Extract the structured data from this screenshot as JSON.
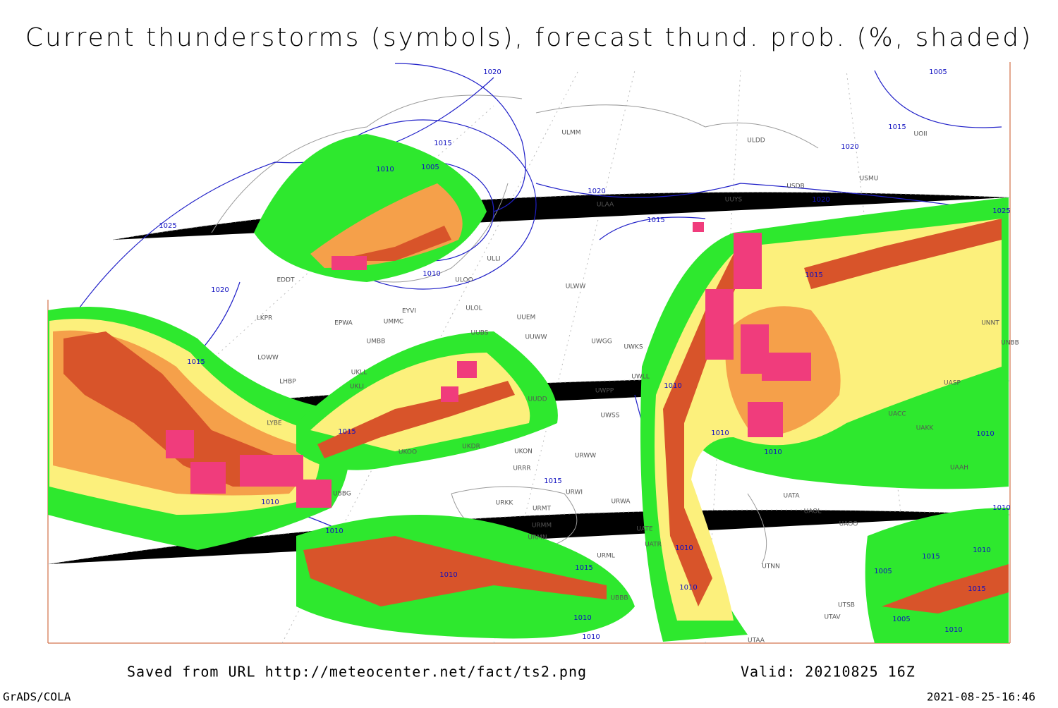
{
  "header": {
    "title": "Current thunderstorms (symbols), forecast thund. prob. (%, shaded)"
  },
  "map": {
    "isobar_labels": [
      1020,
      1015,
      1010,
      1005,
      1025,
      1020,
      1010,
      1015,
      1020,
      1015,
      1020,
      1015,
      1010,
      1015,
      1010,
      1010,
      1015,
      1010,
      1010,
      1010,
      1010,
      1015,
      1010,
      1010,
      1010,
      1005,
      1015,
      1020,
      1010,
      1010,
      1015,
      1005,
      1015,
      1005,
      1010,
      1010,
      1025
    ],
    "stations": [
      "ULMM",
      "ULDD",
      "USMU",
      "USDB",
      "UUYS",
      "ULAA",
      "ULLI",
      "ULOO",
      "EDDT",
      "EYVI",
      "ULOL",
      "UUEM",
      "ULWW",
      "UMMC",
      "EPWA",
      "LKPR",
      "UUWW",
      "UWGG",
      "UMBB",
      "UUBS",
      "UWKS",
      "LOWW",
      "UKLL",
      "LHBP",
      "UKLI",
      "UWLL",
      "UWPP",
      "UUDD",
      "LYBE",
      "UWSS",
      "UKOO",
      "UKDR",
      "UKON",
      "URWW",
      "URRR",
      "URWI",
      "URKK",
      "URMT",
      "URWA",
      "UATA",
      "UAOL",
      "UAOO",
      "URMM",
      "UATE",
      "URMN",
      "UATR",
      "URML",
      "UTNN",
      "UBBB",
      "UTSB",
      "UTAV",
      "UTAA",
      "UASP",
      "UACC",
      "UAKK",
      "UNNT",
      "UNBB",
      "UAAH",
      "UBBG",
      "UOII"
    ]
  },
  "footer": {
    "source": "Saved from URL http://meteocenter.net/fact/ts2.png",
    "valid": "Valid: 20210825 16Z",
    "software": "GrADS/COLA",
    "timestamp": "2021-08-25-16:46"
  }
}
